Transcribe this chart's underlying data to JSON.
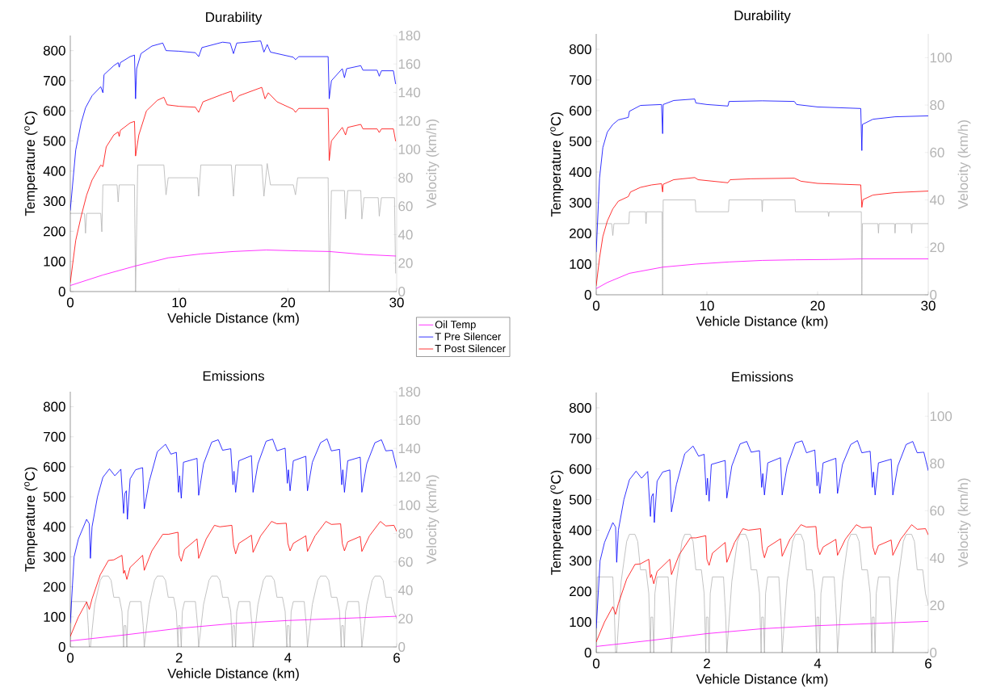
{
  "chart_data": [
    {
      "type": "line",
      "title": "Durability",
      "xlabel": "Vehicle Distance (km)",
      "ylabel": "Temperature ($^{o}$C)",
      "y2label": "Velocity (km/h)",
      "xlim": [
        0,
        30
      ],
      "xticks": [
        0,
        10,
        20,
        30
      ],
      "ylim": [
        0,
        850
      ],
      "yticks": [
        0,
        100,
        200,
        300,
        400,
        500,
        600,
        700,
        800
      ],
      "y2lim": [
        0,
        180
      ],
      "y2ticks": [
        0,
        20,
        40,
        60,
        80,
        100,
        120,
        140,
        160,
        180
      ],
      "legend": "bottom right",
      "series": [
        {
          "axis": "y2",
          "color": "#b4b4b4",
          "x": [
            0,
            1.3,
            1.4,
            1.5,
            2.8,
            2.9,
            3.0,
            4.3,
            4.4,
            4.5,
            5.9,
            6.0,
            6.2,
            8.6,
            8.8,
            9.0,
            11.7,
            11.8,
            12.0,
            14.8,
            15.0,
            15.2,
            17.6,
            17.8,
            18.1,
            18.4,
            20.5,
            20.7,
            20.9,
            23.7,
            23.8,
            24.0,
            25.2,
            25.3,
            25.5,
            26.7,
            26.8,
            27.0,
            28.3,
            28.4,
            28.6,
            29.8,
            29.9
          ],
          "values": [
            55,
            55,
            41,
            55,
            55,
            42,
            75,
            75,
            63,
            75,
            75,
            0,
            89,
            89,
            68,
            80,
            80,
            67,
            89,
            89,
            67,
            89,
            89,
            67,
            90,
            75,
            75,
            68,
            80,
            80,
            0,
            71,
            71,
            51,
            71,
            71,
            51,
            66,
            66,
            53,
            66,
            66,
            13
          ]
        },
        {
          "name": "Oil Temp",
          "color": "#ff00ff",
          "x": [
            0,
            3,
            6,
            9,
            12,
            15,
            18,
            21,
            23.8,
            27,
            29.9
          ],
          "values": [
            20,
            55,
            85,
            112,
            125,
            133,
            138,
            135,
            133,
            123,
            118
          ]
        },
        {
          "name": "T Pre Silencer",
          "color": "#0000ff",
          "x": [
            0,
            0.5,
            1,
            1.4,
            2,
            2.8,
            3,
            3.1,
            4,
            4.4,
            4.5,
            4.6,
            5.5,
            5.9,
            6.0,
            6.1,
            6.5,
            7.5,
            8.5,
            8.8,
            10,
            11.5,
            11.8,
            12.1,
            14,
            14.7,
            15,
            15.3,
            17.5,
            17.8,
            18.1,
            18.4,
            20.5,
            20.7,
            21,
            23.7,
            23.8,
            24,
            25,
            25.2,
            25.4,
            26.7,
            26.9,
            28.2,
            28.4,
            28.6,
            29.7,
            29.9
          ],
          "values": [
            270,
            470,
            560,
            610,
            650,
            680,
            660,
            720,
            750,
            760,
            745,
            760,
            780,
            785,
            640,
            740,
            790,
            815,
            825,
            800,
            798,
            793,
            780,
            810,
            828,
            825,
            790,
            825,
            832,
            795,
            820,
            795,
            778,
            770,
            780,
            780,
            640,
            700,
            740,
            710,
            740,
            750,
            735,
            735,
            715,
            733,
            733,
            690
          ]
        },
        {
          "name": "T Post Silencer",
          "color": "#ff0000",
          "x": [
            0,
            0.5,
            1,
            1.5,
            2,
            2.8,
            3,
            3.3,
            4,
            4.4,
            4.5,
            4.6,
            5.5,
            5.9,
            6.0,
            6.3,
            7,
            8,
            8.6,
            8.9,
            10,
            11.5,
            11.8,
            12.2,
            14,
            14.8,
            15,
            15.5,
            17.6,
            17.9,
            18.2,
            19,
            20.5,
            20.7,
            21,
            23.7,
            23.8,
            24,
            25,
            25.3,
            25.5,
            26.7,
            26.9,
            28.2,
            28.4,
            28.6,
            29.7,
            29.9
          ],
          "values": [
            30,
            170,
            250,
            320,
            370,
            420,
            415,
            480,
            520,
            530,
            515,
            535,
            560,
            565,
            450,
            520,
            600,
            635,
            645,
            620,
            615,
            612,
            595,
            630,
            655,
            665,
            630,
            650,
            678,
            640,
            660,
            630,
            605,
            595,
            608,
            608,
            435,
            500,
            545,
            520,
            545,
            555,
            540,
            540,
            528,
            540,
            540,
            500
          ]
        }
      ]
    },
    {
      "type": "line",
      "title": "Durability",
      "xlabel": "Vehicle Distance (km)",
      "ylabel": "Temperature ($^{o}$C)",
      "y2label": "Velocity (km/h)",
      "xlim": [
        0,
        30
      ],
      "xticks": [
        0,
        10,
        20,
        30
      ],
      "ylim": [
        0,
        850
      ],
      "yticks": [
        0,
        100,
        200,
        300,
        400,
        500,
        600,
        700,
        800
      ],
      "y2lim": [
        0,
        110
      ],
      "y2ticks": [
        0,
        20,
        40,
        60,
        80,
        100
      ],
      "series": [
        {
          "axis": "y2",
          "color": "#b4b4b4",
          "x": [
            0,
            1.4,
            1.5,
            1.6,
            2.95,
            3.0,
            4.45,
            4.5,
            4.55,
            5.95,
            6.0,
            6.05,
            8.95,
            9.0,
            11.95,
            12.0,
            14.95,
            15.0,
            15.05,
            17.95,
            18.0,
            20.95,
            21.0,
            21.05,
            23.95,
            24.0,
            24.05,
            25.45,
            25.5,
            25.55,
            26.95,
            27.0,
            27.05,
            28.45,
            28.5,
            28.55,
            30
          ],
          "values": [
            30,
            30,
            25,
            30,
            30,
            35,
            35,
            30,
            35,
            35,
            0,
            40,
            40,
            35,
            35,
            40,
            40,
            35,
            40,
            40,
            35,
            35,
            33,
            35,
            35,
            0,
            30,
            30,
            26,
            30,
            30,
            26,
            30,
            30,
            26,
            30,
            30
          ]
        },
        {
          "color": "#ff00ff",
          "x": [
            0,
            1,
            3,
            6,
            9,
            12,
            15,
            18,
            21,
            24,
            30
          ],
          "values": [
            20,
            40,
            70,
            90,
            100,
            107,
            112,
            114,
            115,
            117,
            117
          ]
        },
        {
          "color": "#0000ff",
          "x": [
            0,
            0.3,
            0.6,
            1,
            1.5,
            2,
            2.9,
            3.0,
            4,
            5.9,
            6.0,
            6.05,
            7,
            8.9,
            9.0,
            10,
            11.9,
            12.0,
            15,
            17.9,
            18.1,
            20,
            23.9,
            24.0,
            24.05,
            25,
            27,
            30
          ],
          "values": [
            140,
            380,
            480,
            530,
            555,
            570,
            578,
            598,
            617,
            620,
            525,
            620,
            633,
            638,
            625,
            620,
            615,
            630,
            632,
            630,
            620,
            612,
            607,
            470,
            555,
            572,
            580,
            583
          ]
        },
        {
          "color": "#ff0000",
          "x": [
            0,
            0.3,
            0.6,
            1,
            1.5,
            2,
            2.9,
            3.1,
            4,
            5,
            5.9,
            6.0,
            6.05,
            7,
            8.9,
            9.2,
            11.9,
            12.1,
            14,
            17.9,
            18.5,
            20,
            23.9,
            24.0,
            24.1,
            25,
            27,
            30
          ],
          "values": [
            30,
            120,
            190,
            240,
            280,
            305,
            320,
            335,
            350,
            358,
            362,
            335,
            360,
            375,
            382,
            375,
            365,
            375,
            378,
            380,
            370,
            363,
            358,
            285,
            310,
            325,
            333,
            338
          ]
        }
      ]
    },
    {
      "type": "line",
      "title": "Emissions",
      "xlabel": "Vehicle Distance (km)",
      "ylabel": "Temperature ($^{o}$C)",
      "y2label": "Velocity (km/h)",
      "xlim": [
        0,
        6
      ],
      "xticks": [
        0,
        2,
        4,
        6
      ],
      "ylim": [
        0,
        850
      ],
      "yticks": [
        0,
        100,
        200,
        300,
        400,
        500,
        600,
        700,
        800
      ],
      "y2lim": [
        0,
        180
      ],
      "y2ticks": [
        0,
        20,
        40,
        60,
        80,
        100,
        120,
        140,
        160,
        180
      ],
      "series": [
        {
          "axis": "y2",
          "color": "#b4b4b4",
          "x": [
            0,
            0.02,
            0.3,
            0.33,
            0.35,
            0.37,
            0.45,
            0.55,
            0.6,
            0.7,
            0.75,
            0.8,
            0.9,
            0.95,
            0.98,
            0.99,
            1.02,
            1.04,
            1.06,
            1.1,
            1.3,
            1.34,
            1.36,
            1.45,
            1.55,
            1.6,
            1.7,
            1.75,
            1.8,
            1.9,
            1.95,
            1.98,
            1.99,
            2.02,
            2.04,
            2.06,
            2.1,
            2.3,
            2.34,
            2.36,
            2.45,
            2.55,
            2.6,
            2.7,
            2.75,
            2.8,
            2.9,
            2.95,
            2.98,
            2.99,
            3.02,
            3.04,
            3.06,
            3.1,
            3.3,
            3.34,
            3.36,
            3.45,
            3.55,
            3.6,
            3.7,
            3.75,
            3.8,
            3.9,
            3.95,
            3.98,
            3.99,
            4.02,
            4.04,
            4.06,
            4.1,
            4.3,
            4.34,
            4.36,
            4.45,
            4.55,
            4.6,
            4.7,
            4.75,
            4.8,
            4.9,
            4.95,
            4.98,
            4.99,
            5.02,
            5.04,
            5.06,
            5.1,
            5.3,
            5.34,
            5.36,
            5.45,
            5.55,
            5.6,
            5.7,
            5.75,
            5.8,
            5.9,
            5.95,
            6.0
          ],
          "values": [
            0,
            32,
            32,
            15,
            0,
            0,
            30,
            47,
            50,
            50,
            47,
            35,
            35,
            25,
            0,
            15,
            15,
            0,
            25,
            32,
            32,
            15,
            0,
            30,
            47,
            50,
            50,
            47,
            35,
            35,
            25,
            0,
            15,
            15,
            0,
            25,
            32,
            32,
            15,
            0,
            30,
            47,
            50,
            50,
            47,
            35,
            35,
            25,
            0,
            15,
            15,
            0,
            25,
            32,
            32,
            15,
            0,
            30,
            47,
            50,
            50,
            47,
            35,
            35,
            25,
            0,
            15,
            15,
            0,
            25,
            32,
            32,
            15,
            0,
            30,
            47,
            50,
            50,
            47,
            35,
            35,
            25,
            0,
            15,
            15,
            0,
            25,
            32,
            32,
            15,
            0,
            30,
            47,
            50,
            50,
            47,
            35,
            35,
            25,
            20
          ]
        },
        {
          "color": "#ff00ff",
          "x": [
            0,
            1,
            2,
            3,
            4,
            5,
            6
          ],
          "values": [
            20,
            40,
            62,
            78,
            88,
            95,
            102
          ]
        },
        {
          "color": "#0000ff",
          "x": [
            0,
            0.07,
            0.15,
            0.3,
            0.35,
            0.37,
            0.4,
            0.5,
            0.6,
            0.72,
            0.82,
            0.93,
            0.98,
            1.0,
            1.03,
            1.05,
            1.1,
            1.2,
            1.33,
            1.36,
            1.45,
            1.6,
            1.75,
            1.85,
            1.95,
            1.99,
            2.01,
            2.04,
            2.08,
            2.33,
            2.36,
            2.45,
            2.6,
            2.72,
            2.8,
            2.95,
            2.99,
            3.01,
            3.04,
            3.1,
            3.33,
            3.36,
            3.45,
            3.6,
            3.72,
            3.8,
            3.95,
            3.99,
            4.01,
            4.04,
            4.1,
            4.33,
            4.36,
            4.45,
            4.6,
            4.72,
            4.8,
            4.95,
            4.99,
            5.01,
            5.04,
            5.1,
            5.33,
            5.36,
            5.45,
            5.6,
            5.72,
            5.8,
            5.92,
            6.0
          ],
          "values": [
            80,
            300,
            360,
            425,
            410,
            295,
            400,
            500,
            565,
            593,
            570,
            592,
            445,
            510,
            520,
            425,
            560,
            590,
            597,
            460,
            550,
            650,
            675,
            642,
            648,
            515,
            570,
            495,
            615,
            628,
            505,
            610,
            682,
            690,
            655,
            660,
            540,
            585,
            515,
            620,
            637,
            515,
            610,
            685,
            692,
            653,
            662,
            545,
            590,
            520,
            620,
            635,
            520,
            615,
            680,
            693,
            653,
            658,
            540,
            590,
            515,
            620,
            632,
            515,
            610,
            680,
            690,
            653,
            655,
            595
          ]
        },
        {
          "color": "#ff0000",
          "x": [
            0,
            0.15,
            0.3,
            0.35,
            0.4,
            0.55,
            0.7,
            0.8,
            0.95,
            0.98,
            1.0,
            1.04,
            1.1,
            1.33,
            1.36,
            1.5,
            1.7,
            1.8,
            1.98,
            2.0,
            2.04,
            2.1,
            2.33,
            2.36,
            2.5,
            2.65,
            2.75,
            2.97,
            3.0,
            3.04,
            3.1,
            3.33,
            3.36,
            3.5,
            3.7,
            3.8,
            3.97,
            4.0,
            4.04,
            4.1,
            4.33,
            4.36,
            4.5,
            4.7,
            4.8,
            4.97,
            5.0,
            5.04,
            5.1,
            5.33,
            5.36,
            5.5,
            5.7,
            5.8,
            5.95,
            6.0
          ],
          "values": [
            35,
            100,
            150,
            125,
            160,
            240,
            288,
            290,
            305,
            245,
            255,
            225,
            265,
            305,
            255,
            320,
            375,
            375,
            382,
            305,
            285,
            325,
            360,
            295,
            360,
            405,
            400,
            405,
            340,
            310,
            345,
            372,
            315,
            370,
            418,
            410,
            412,
            345,
            320,
            345,
            370,
            318,
            370,
            418,
            408,
            410,
            345,
            320,
            350,
            368,
            318,
            370,
            418,
            403,
            405,
            385
          ]
        }
      ]
    },
    {
      "type": "line",
      "title": "Emissions",
      "xlabel": "Vehicle Distance (km)",
      "ylabel": "Temperature ($^{o}$C)",
      "y2label": "Velocity (km/h)",
      "xlim": [
        0,
        6
      ],
      "xticks": [
        0,
        2,
        4,
        6
      ],
      "ylim": [
        0,
        850
      ],
      "yticks": [
        0,
        100,
        200,
        300,
        400,
        500,
        600,
        700,
        800
      ],
      "y2lim": [
        0,
        110
      ],
      "y2ticks": [
        0,
        20,
        40,
        60,
        80,
        100
      ],
      "series": [
        {
          "axis": "y2",
          "color": "#b4b4b4",
          "x": [
            0,
            0.02,
            0.3,
            0.33,
            0.35,
            0.37,
            0.45,
            0.55,
            0.6,
            0.7,
            0.75,
            0.8,
            0.9,
            0.95,
            0.98,
            0.99,
            1.02,
            1.04,
            1.06,
            1.1,
            1.3,
            1.34,
            1.36,
            1.45,
            1.55,
            1.6,
            1.7,
            1.75,
            1.8,
            1.9,
            1.95,
            1.98,
            1.99,
            2.02,
            2.04,
            2.06,
            2.1,
            2.3,
            2.34,
            2.36,
            2.45,
            2.55,
            2.6,
            2.7,
            2.75,
            2.8,
            2.9,
            2.95,
            2.98,
            2.99,
            3.02,
            3.04,
            3.06,
            3.1,
            3.3,
            3.34,
            3.36,
            3.45,
            3.55,
            3.6,
            3.7,
            3.75,
            3.8,
            3.9,
            3.95,
            3.98,
            3.99,
            4.02,
            4.04,
            4.06,
            4.1,
            4.3,
            4.34,
            4.36,
            4.45,
            4.55,
            4.6,
            4.7,
            4.75,
            4.8,
            4.9,
            4.95,
            4.98,
            4.99,
            5.02,
            5.04,
            5.06,
            5.1,
            5.3,
            5.34,
            5.36,
            5.45,
            5.55,
            5.6,
            5.7,
            5.75,
            5.8,
            5.9,
            5.95,
            6.0
          ],
          "values": [
            0,
            32,
            32,
            15,
            0,
            0,
            30,
            47,
            50,
            50,
            47,
            35,
            35,
            25,
            0,
            15,
            15,
            0,
            25,
            32,
            32,
            15,
            0,
            30,
            47,
            50,
            50,
            47,
            35,
            35,
            25,
            0,
            15,
            15,
            0,
            25,
            32,
            32,
            15,
            0,
            30,
            47,
            50,
            50,
            47,
            35,
            35,
            25,
            0,
            15,
            15,
            0,
            25,
            32,
            32,
            15,
            0,
            30,
            47,
            50,
            50,
            47,
            35,
            35,
            25,
            0,
            15,
            15,
            0,
            25,
            32,
            32,
            15,
            0,
            30,
            47,
            50,
            50,
            47,
            35,
            35,
            25,
            0,
            15,
            15,
            0,
            25,
            32,
            32,
            15,
            0,
            30,
            47,
            50,
            50,
            47,
            35,
            35,
            25,
            20
          ]
        },
        {
          "color": "#ff00ff",
          "x": [
            0,
            1,
            2,
            3,
            4,
            5,
            6
          ],
          "values": [
            20,
            40,
            62,
            78,
            88,
            95,
            102
          ]
        },
        {
          "color": "#0000ff",
          "x": [
            0,
            0.07,
            0.15,
            0.3,
            0.35,
            0.37,
            0.4,
            0.5,
            0.6,
            0.72,
            0.82,
            0.93,
            0.98,
            1.0,
            1.03,
            1.05,
            1.1,
            1.2,
            1.33,
            1.36,
            1.45,
            1.6,
            1.75,
            1.85,
            1.95,
            1.99,
            2.01,
            2.04,
            2.08,
            2.33,
            2.36,
            2.45,
            2.6,
            2.72,
            2.8,
            2.95,
            2.99,
            3.01,
            3.04,
            3.1,
            3.33,
            3.36,
            3.45,
            3.6,
            3.72,
            3.8,
            3.95,
            3.99,
            4.01,
            4.04,
            4.1,
            4.33,
            4.36,
            4.45,
            4.6,
            4.72,
            4.8,
            4.95,
            4.99,
            5.01,
            5.04,
            5.1,
            5.33,
            5.36,
            5.45,
            5.6,
            5.72,
            5.8,
            5.92,
            6.0
          ],
          "values": [
            80,
            300,
            360,
            425,
            410,
            295,
            400,
            500,
            565,
            593,
            570,
            592,
            445,
            510,
            520,
            425,
            560,
            590,
            597,
            460,
            550,
            650,
            675,
            642,
            648,
            515,
            570,
            495,
            615,
            628,
            505,
            610,
            682,
            690,
            655,
            660,
            540,
            585,
            515,
            620,
            637,
            515,
            610,
            685,
            692,
            653,
            662,
            545,
            590,
            520,
            620,
            635,
            520,
            615,
            680,
            693,
            653,
            658,
            540,
            590,
            515,
            620,
            632,
            515,
            610,
            680,
            690,
            653,
            655,
            595
          ]
        },
        {
          "color": "#ff0000",
          "x": [
            0,
            0.15,
            0.3,
            0.35,
            0.4,
            0.55,
            0.7,
            0.8,
            0.95,
            0.98,
            1.0,
            1.04,
            1.1,
            1.33,
            1.36,
            1.5,
            1.7,
            1.8,
            1.98,
            2.0,
            2.04,
            2.1,
            2.33,
            2.36,
            2.5,
            2.65,
            2.75,
            2.97,
            3.0,
            3.04,
            3.1,
            3.33,
            3.36,
            3.5,
            3.7,
            3.8,
            3.97,
            4.0,
            4.04,
            4.1,
            4.33,
            4.36,
            4.5,
            4.7,
            4.8,
            4.97,
            5.0,
            5.04,
            5.1,
            5.33,
            5.36,
            5.5,
            5.7,
            5.8,
            5.95,
            6.0
          ],
          "values": [
            35,
            100,
            150,
            125,
            160,
            240,
            288,
            290,
            305,
            245,
            255,
            225,
            265,
            305,
            255,
            320,
            375,
            375,
            382,
            305,
            285,
            325,
            360,
            295,
            360,
            405,
            400,
            405,
            340,
            310,
            345,
            372,
            315,
            370,
            418,
            410,
            412,
            345,
            320,
            345,
            370,
            318,
            370,
            418,
            408,
            410,
            345,
            320,
            350,
            368,
            318,
            370,
            418,
            403,
            405,
            385
          ]
        }
      ]
    }
  ]
}
